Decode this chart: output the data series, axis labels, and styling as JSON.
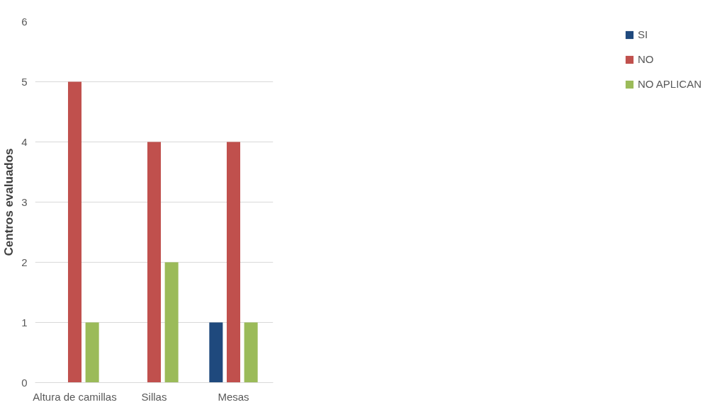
{
  "chart_data": {
    "type": "bar",
    "ylabel": "Centros evaluados",
    "categories": [
      "Altura de camillas",
      "Sillas",
      "Mesas"
    ],
    "series": [
      {
        "name": "SI",
        "color": "#1f497d",
        "values": [
          0,
          0,
          1
        ]
      },
      {
        "name": "NO",
        "color": "#c0504d",
        "values": [
          5,
          4,
          4
        ]
      },
      {
        "name": "NO APLICAN",
        "color": "#9bbb59",
        "values": [
          1,
          2,
          1
        ]
      }
    ],
    "ylim": [
      0,
      6
    ],
    "yticks": [
      0,
      1,
      2,
      3,
      4,
      5,
      6
    ],
    "grid": "y",
    "legend": "right"
  }
}
